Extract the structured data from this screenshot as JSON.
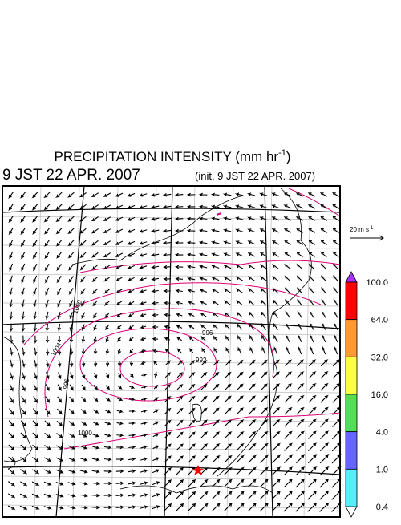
{
  "header": {
    "title": "PRECIPITATION INTENSITY (mm hr",
    "title_exponent": "-1",
    "title_close": ")",
    "valid_time": "9 JST 22 APR. 2007",
    "init_time": "(init. 9 JST 22 APR. 2007)"
  },
  "wind_reference": {
    "label": "20 m s",
    "exponent": "-1"
  },
  "contour_labels": [
    "992",
    "996",
    "1000",
    "1004",
    "1000",
    "996"
  ],
  "colorbar": {
    "levels": [
      {
        "value": 100,
        "label": "100.0"
      },
      {
        "value": 64,
        "label": "64.0"
      },
      {
        "value": 32,
        "label": "32.0"
      },
      {
        "value": 16,
        "label": "16.0"
      },
      {
        "value": 4,
        "label": "4.0"
      },
      {
        "value": 1,
        "label": "1.0"
      },
      {
        "value": 0.4,
        "label": "0.4"
      }
    ],
    "colors": [
      "#ff0000",
      "#ff9933",
      "#ffff44",
      "#55dd55",
      "#6666ff",
      "#55eeff"
    ],
    "over_color": "#aa33ff",
    "under_color": "#ffffff"
  }
}
